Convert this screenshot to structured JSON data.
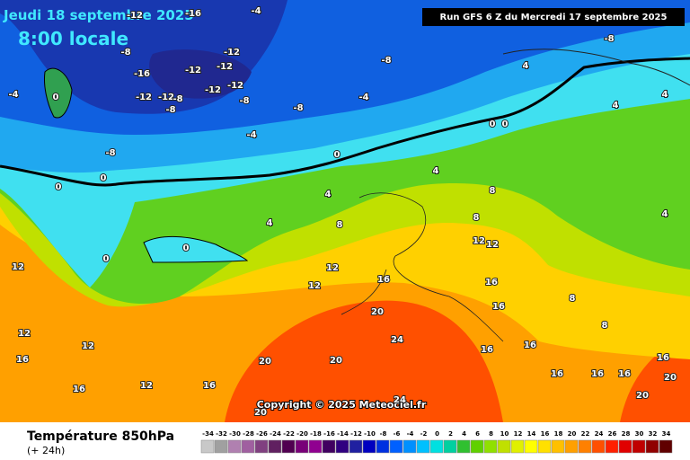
{
  "header": {
    "date": "Jeudi 18 septembre 2025",
    "time": "8:00 locale",
    "run": "Run GFS 6 Z du Mercredi 17 septembre 2025"
  },
  "copyright": "Copyright © 2025 Meteociel.fr",
  "footer": {
    "title": "Température 850hPa",
    "lead": "(+ 24h)"
  },
  "scale": [
    {
      "value": -34,
      "color": "#c8c8c8"
    },
    {
      "value": -32,
      "color": "#a0a0a0"
    },
    {
      "value": -30,
      "color": "#b080b0"
    },
    {
      "value": -28,
      "color": "#a060a0"
    },
    {
      "value": -26,
      "color": "#804080"
    },
    {
      "value": -24,
      "color": "#602060"
    },
    {
      "value": -22,
      "color": "#500050"
    },
    {
      "value": -20,
      "color": "#780078"
    },
    {
      "value": -18,
      "color": "#900090"
    },
    {
      "value": -16,
      "color": "#400060"
    },
    {
      "value": -14,
      "color": "#300080"
    },
    {
      "value": -12,
      "color": "#2020a0"
    },
    {
      "value": -10,
      "color": "#0000c0"
    },
    {
      "value": -8,
      "color": "#0030e0"
    },
    {
      "value": -6,
      "color": "#0060ff"
    },
    {
      "value": -4,
      "color": "#0090ff"
    },
    {
      "value": -2,
      "color": "#00c0ff"
    },
    {
      "value": 0,
      "color": "#00e0e0"
    },
    {
      "value": 2,
      "color": "#00d0a0"
    },
    {
      "value": 4,
      "color": "#30c030"
    },
    {
      "value": 6,
      "color": "#60d000"
    },
    {
      "value": 8,
      "color": "#90e000"
    },
    {
      "value": 10,
      "color": "#c0e000"
    },
    {
      "value": 12,
      "color": "#e0f000"
    },
    {
      "value": 14,
      "color": "#ffff00"
    },
    {
      "value": 16,
      "color": "#ffe000"
    },
    {
      "value": 18,
      "color": "#ffc000"
    },
    {
      "value": 20,
      "color": "#ffa000"
    },
    {
      "value": 22,
      "color": "#ff8000"
    },
    {
      "value": 24,
      "color": "#ff5000"
    },
    {
      "value": 26,
      "color": "#ff2000"
    },
    {
      "value": 28,
      "color": "#e00000"
    },
    {
      "value": 30,
      "color": "#c00000"
    },
    {
      "value": 32,
      "color": "#900000"
    },
    {
      "value": 34,
      "color": "#600000"
    }
  ],
  "map_labels": [
    -12,
    -16,
    -4,
    -8,
    -16,
    -12,
    -12,
    -12,
    -12,
    -12,
    -12,
    -12,
    -8,
    -8,
    -8,
    -8,
    -8,
    -4,
    -4,
    -4,
    -8,
    0,
    -8,
    0,
    0,
    0,
    0,
    0,
    0,
    0,
    4,
    4,
    4,
    4,
    4,
    4,
    4,
    8,
    8,
    8,
    8,
    8,
    12,
    12,
    12,
    12,
    12,
    12,
    12,
    12,
    16,
    16,
    16,
    16,
    16,
    16,
    16,
    16,
    16,
    16,
    16,
    16,
    20,
    20,
    20,
    20,
    20,
    20,
    24,
    24
  ]
}
